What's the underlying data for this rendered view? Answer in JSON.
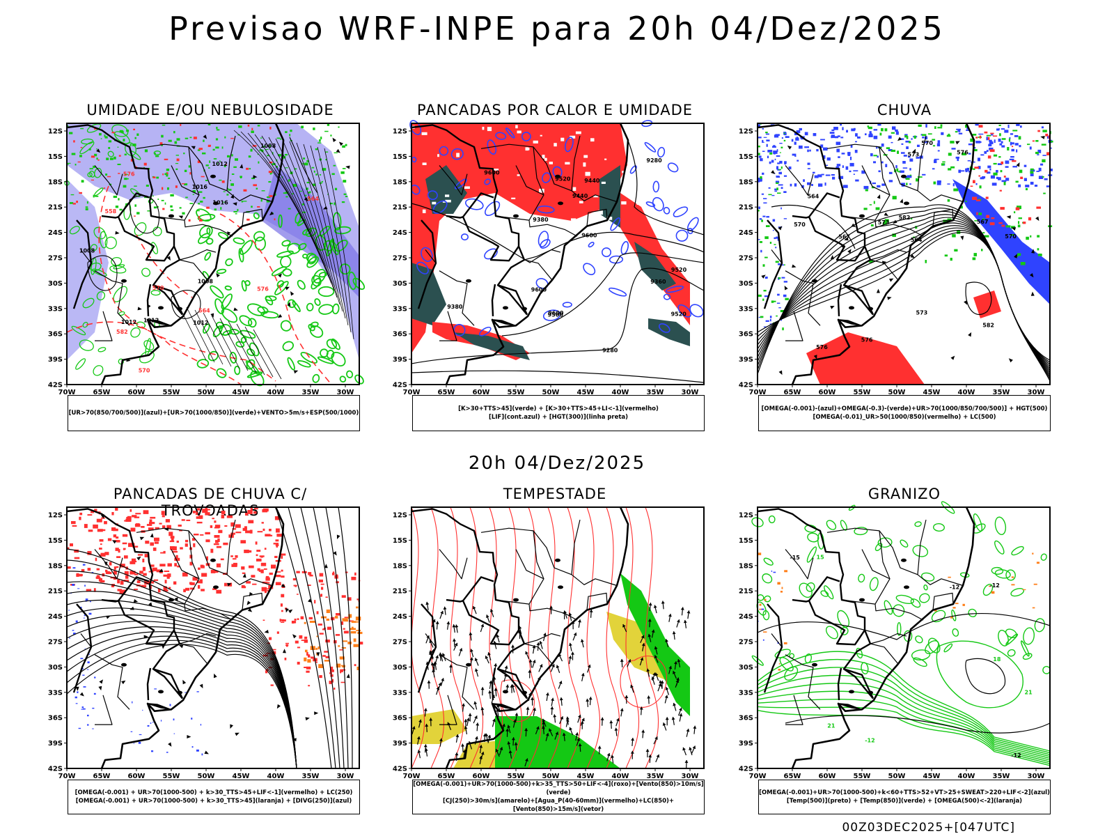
{
  "title": "Previsao WRF-INPE  para 20h 04/Dez/2025",
  "subtitle": "20h 04/Dez/2025",
  "footer": "00Z03DEC2025+[047UTC]",
  "axes": {
    "lat_labels": [
      "12S",
      "15S",
      "18S",
      "21S",
      "24S",
      "27S",
      "30S",
      "33S",
      "36S",
      "39S",
      "42S"
    ],
    "lon_labels": [
      "70W",
      "65W",
      "60W",
      "55W",
      "50W",
      "45W",
      "40W",
      "35W",
      "30W"
    ]
  },
  "colors": {
    "blue": "#2f43ff",
    "green": "#14c814",
    "red": "#ff3030",
    "lavender": "#a9a6f2",
    "dark_teal": "#2b5050",
    "yellow": "#e2d33a",
    "orange": "#ff7f1a"
  },
  "panels": [
    {
      "title": "UMIDADE E/OU NEBULOSIDADE",
      "legend": [
        "[UR>70(850/700/500)](azul)+[UR>70(1000/850)](verde)+VENTO>5m/s+ESP(500/1000)"
      ],
      "labels": [
        "1012",
        "1008",
        "1008",
        "1012",
        "1012",
        "1008",
        "1012",
        "1016",
        "1016",
        "576",
        "576",
        "570",
        "582",
        "564",
        "558",
        "570",
        "564"
      ]
    },
    {
      "title": "PANCADAS POR CALOR E UMIDADE",
      "legend": [
        "[K>30+TTS>45](verde) + [K>30+TTS>45+LI<-1](vermelho)",
        "[LIF](cont.azul) + [HGT(300)](linha preta)"
      ],
      "labels": [
        "9600",
        "9600",
        "9600",
        "9520",
        "9520",
        "9500",
        "9440",
        "9380",
        "9520",
        "9440",
        "9360",
        "9280",
        "9280",
        "9380",
        "9600"
      ]
    },
    {
      "title": "CHUVA",
      "legend": [
        "[OMEGA(-0.001)-(azul)+OMEGA(-0.3)-(verde)+UR>70(1000/850/700/500)] + HGT(500)",
        "[OMEGA(-0.01)_UR>50(1000/850)(vermelho) + LC(500)"
      ],
      "labels": [
        "582",
        "576",
        "573",
        "570",
        "567",
        "564",
        "582",
        "576",
        "573",
        "570",
        "567",
        "564",
        "573",
        "570",
        "576"
      ]
    },
    {
      "title": "PANCADAS DE CHUVA C/ TROVOADAS",
      "legend": [
        "[OMEGA(-0.001) + UR>70(1000-500) + k>30_TTS>45+LIF<-1](vermelho) + LC(250)",
        "[OMEGA(-0.001) + UR>70(1000-500) + k>30_TTS>45](laranja) + [DIVG(250)](azul)"
      ],
      "labels": []
    },
    {
      "title": "TEMPESTADE",
      "legend": [
        "[OMEGA(-0.001)+UR>70(1000-500)+k>35_TTS>50+LIF<-4](roxo)+[Vento(850)>10m/s](verde)",
        "[CJ(250)>30m/s](amarelo)+[Agua_P(40-60mm)](vermelho)+LC(850)+[Vento(850)>15m/s](vetor)"
      ],
      "labels": []
    },
    {
      "title": "GRANIZO",
      "legend": [
        "[OMEGA(-0.001)+UR>70(1000-500)+k<60+TTS>52+VT>25+SWEAT>220+LIF<-2](azul)",
        "[Temp(500)](preto) + [Temp(850)](verde) + [OMEGA(500)<-2](laranja)"
      ],
      "labels": [
        "-12",
        "-15",
        "-12",
        "-12",
        "21",
        "18",
        "15",
        "21",
        "-12"
      ]
    }
  ]
}
